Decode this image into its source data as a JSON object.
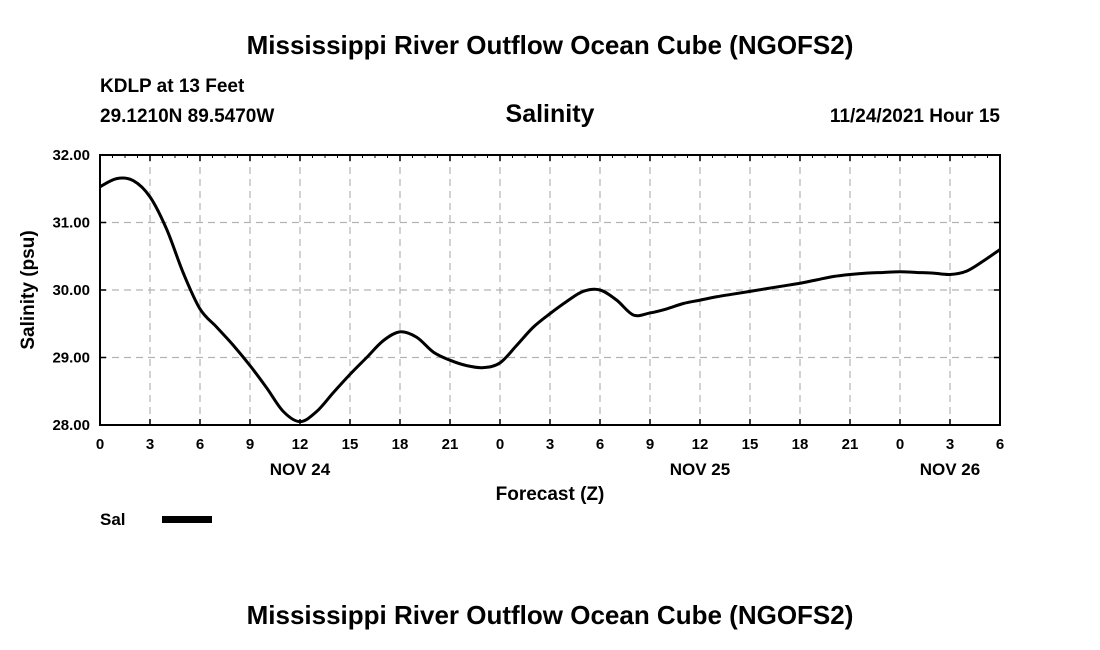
{
  "header": {
    "title": "Mississippi River Outflow Ocean Cube (NGOFS2)",
    "station": "KDLP at 13 Feet",
    "coords": "29.1210N  89.5470W",
    "variable": "Salinity",
    "timestamp": "11/24/2021 Hour 15"
  },
  "footer": {
    "title": "Mississippi River Outflow Ocean Cube (NGOFS2)"
  },
  "chart_data": {
    "type": "line",
    "title": "Salinity",
    "xlabel": "Forecast (Z)",
    "ylabel": "Salinity (psu)",
    "xlim": [
      0,
      54
    ],
    "ylim": [
      28.0,
      32.0
    ],
    "grid": true,
    "y_ticks": [
      "28.00",
      "29.00",
      "30.00",
      "31.00",
      "32.00"
    ],
    "y_tick_values": [
      28,
      29,
      30,
      31,
      32
    ],
    "x_ticks": [
      "0",
      "3",
      "6",
      "9",
      "12",
      "15",
      "18",
      "21",
      "0",
      "3",
      "6",
      "9",
      "12",
      "15",
      "18",
      "21",
      "0",
      "3",
      "6"
    ],
    "x_tick_hours": [
      0,
      3,
      6,
      9,
      12,
      15,
      18,
      21,
      24,
      27,
      30,
      33,
      36,
      39,
      42,
      45,
      48,
      51,
      54
    ],
    "day_labels": [
      {
        "label": "NOV 24",
        "hour": 12
      },
      {
        "label": "NOV 25",
        "hour": 36
      },
      {
        "label": "NOV 26",
        "hour": 51
      }
    ],
    "legend": [
      {
        "name": "Sal",
        "color": "#000000"
      }
    ],
    "series": [
      {
        "name": "Sal",
        "color": "#000000",
        "x": [
          0,
          1,
          2,
          3,
          4,
          5,
          6,
          7,
          8,
          9,
          10,
          11,
          12,
          13,
          14,
          15,
          16,
          17,
          18,
          19,
          20,
          21,
          22,
          23,
          24,
          25,
          26,
          27,
          28,
          29,
          30,
          31,
          32,
          33,
          34,
          35,
          36,
          37,
          38,
          39,
          40,
          41,
          42,
          43,
          44,
          45,
          46,
          47,
          48,
          49,
          50,
          51,
          52,
          53,
          54
        ],
        "values": [
          31.53,
          31.65,
          31.62,
          31.38,
          30.9,
          30.25,
          29.72,
          29.45,
          29.18,
          28.88,
          28.55,
          28.2,
          28.05,
          28.2,
          28.48,
          28.75,
          29.0,
          29.25,
          29.38,
          29.3,
          29.08,
          28.96,
          28.88,
          28.85,
          28.92,
          29.18,
          29.45,
          29.65,
          29.83,
          29.98,
          30.0,
          29.85,
          29.63,
          29.66,
          29.72,
          29.8,
          29.85,
          29.9,
          29.94,
          29.98,
          30.02,
          30.06,
          30.1,
          30.15,
          30.2,
          30.23,
          30.25,
          30.26,
          30.27,
          30.26,
          30.25,
          30.23,
          30.28,
          30.43,
          30.6
        ]
      }
    ]
  }
}
